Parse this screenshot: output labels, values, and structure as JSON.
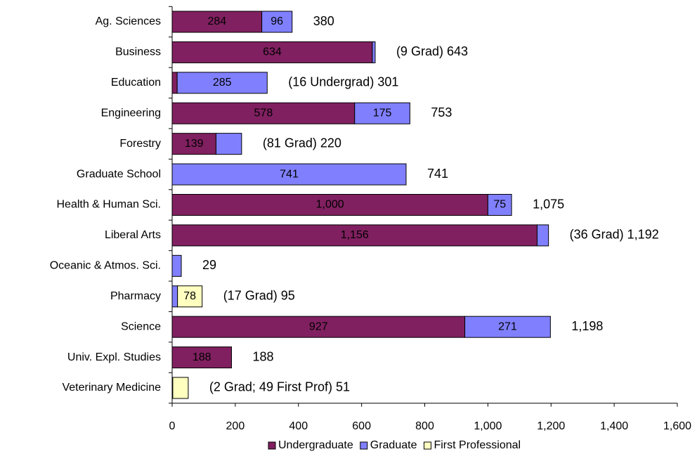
{
  "chart_data": {
    "type": "stacked-bar-horizontal",
    "categories": [
      "Ag. Sciences",
      "Business",
      "Education",
      "Engineering",
      "Forestry",
      "Graduate School",
      "Health & Human Sci.",
      "Liberal Arts",
      "Oceanic & Atmos. Sci.",
      "Pharmacy",
      "Science",
      "Univ. Expl. Studies",
      "Veterinary Medicine"
    ],
    "series": [
      {
        "name": "Undergraduate",
        "color": "#802060",
        "label_color": "#ffffff",
        "values": [
          284,
          634,
          16,
          578,
          139,
          null,
          1000,
          1156,
          null,
          null,
          927,
          188,
          null
        ],
        "value_labels": [
          "284",
          "634",
          null,
          "578",
          "139",
          null,
          "1,000",
          "1,156",
          null,
          null,
          "927",
          "188",
          null
        ]
      },
      {
        "name": "Graduate",
        "color": "#8080ff",
        "label_color": "#000000",
        "values": [
          96,
          9,
          285,
          175,
          81,
          741,
          75,
          36,
          29,
          17,
          271,
          null,
          2
        ],
        "value_labels": [
          "96",
          null,
          "285",
          "175",
          null,
          "741",
          "75",
          null,
          null,
          null,
          "271",
          null,
          null
        ]
      },
      {
        "name": "First Professional",
        "color": "#ffffc0",
        "label_color": "#000000",
        "values": [
          null,
          null,
          null,
          null,
          null,
          null,
          null,
          null,
          null,
          78,
          null,
          null,
          49
        ],
        "value_labels": [
          null,
          null,
          null,
          null,
          null,
          null,
          null,
          null,
          null,
          "78",
          null,
          null,
          null
        ]
      }
    ],
    "annotations": [
      "380",
      "(9 Grad) 643",
      "(16 Undergrad) 301",
      "753",
      "(81 Grad) 220",
      "741",
      "1,075",
      "(36 Grad) 1,192",
      "29",
      "(17 Grad) 95",
      "1,198",
      "188",
      "(2 Grad; 49 First Prof) 51"
    ],
    "xlim": [
      0,
      1600
    ],
    "xticks": [
      0,
      200,
      400,
      600,
      800,
      {
        "value": 1000,
        "label": "1,000"
      },
      {
        "value": 1200,
        "label": "1,200"
      },
      {
        "value": 1400,
        "label": "1,400"
      },
      {
        "value": 1600,
        "label": "1,600"
      }
    ],
    "legend": "bottom"
  }
}
